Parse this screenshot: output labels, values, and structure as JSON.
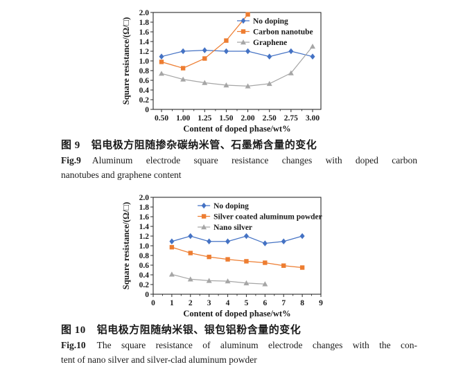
{
  "figure9": {
    "caption_zh_label": "图 9",
    "caption_zh_text": "铝电极方阻随掺杂碳纳米管、石墨烯含量的变化",
    "caption_en_label": "Fig.9",
    "caption_en_line1": "Aluminum electrode square resistance changes with doped carbon",
    "caption_en_line2": "nanotubes and graphene content"
  },
  "figure10": {
    "caption_zh_label": "图 10",
    "caption_zh_text": "铝电极方阻随纳米银、银包铝粉含量的变化",
    "caption_en_label": "Fig.10",
    "caption_en_line1": "The square resistance of aluminum electrode changes with the con-",
    "caption_en_line2": "tent of nano silver and silver-clad aluminum powder"
  },
  "colors": {
    "no_doping_blue": "#4472c4",
    "doped_orange": "#ed7d31",
    "second_doped_gray": "#a6a6a6",
    "axis": "#2a2a2a"
  },
  "chart_data": [
    {
      "id": "fig9",
      "type": "line",
      "x_mode": "categorical",
      "categories": [
        "0.50",
        "1.00",
        "1.25",
        "1.50",
        "2.00",
        "2.50",
        "2.75",
        "3.00"
      ],
      "xlabel": "Content of doped phase/wt%",
      "ylabel": "Square resistance/(Ω/□)",
      "ylim": [
        0,
        2.0
      ],
      "ytick_labels": [
        "0",
        "0.2",
        "0.4",
        "0.6",
        "0.8",
        "1.0",
        "1.2",
        "1.4",
        "1.6",
        "1.8",
        "2.0"
      ],
      "grid": false,
      "legend_position": "top-right-inside",
      "legend_x_frac": 0.5,
      "series": [
        {
          "name": "No doping",
          "color": "#4472c4",
          "marker": "diamond",
          "values": [
            1.09,
            1.2,
            1.22,
            1.2,
            1.2,
            1.09,
            1.2,
            1.09
          ]
        },
        {
          "name": "Carbon nanotube",
          "color": "#ed7d31",
          "marker": "square",
          "values": [
            0.98,
            0.85,
            1.05,
            1.42,
            1.96,
            null,
            null,
            null
          ]
        },
        {
          "name": "Graphene",
          "color": "#a6a6a6",
          "marker": "triangle",
          "values": [
            0.74,
            0.62,
            0.55,
            0.5,
            0.48,
            0.53,
            0.75,
            1.3
          ]
        }
      ]
    },
    {
      "id": "fig10",
      "type": "line",
      "x_mode": "numeric",
      "xlim": [
        0,
        9
      ],
      "xtick_labels": [
        "0",
        "1",
        "2",
        "3",
        "4",
        "5",
        "6",
        "7",
        "8",
        "9"
      ],
      "xlabel": "Content of doped phase/wt%",
      "ylabel": "Square resistance/(Ω/□)",
      "ylim": [
        0,
        2.0
      ],
      "ytick_labels": [
        "0",
        "0.2",
        "0.4",
        "0.6",
        "0.8",
        "1.0",
        "1.2",
        "1.4",
        "1.6",
        "1.8",
        "2.0"
      ],
      "grid": false,
      "legend_position": "top-right-inside",
      "legend_x_frac": 0.265,
      "series": [
        {
          "name": "No doping",
          "color": "#4472c4",
          "marker": "diamond",
          "x": [
            1,
            2,
            3,
            4,
            5,
            6,
            7,
            8
          ],
          "values": [
            1.09,
            1.2,
            1.09,
            1.09,
            1.2,
            1.05,
            1.09,
            1.2
          ]
        },
        {
          "name": "Silver coated aluminum powder",
          "color": "#ed7d31",
          "marker": "square",
          "x": [
            1,
            2,
            3,
            4,
            5,
            6,
            7,
            8
          ],
          "values": [
            0.97,
            0.85,
            0.77,
            0.72,
            0.68,
            0.65,
            0.59,
            0.55
          ]
        },
        {
          "name": "Nano silver",
          "color": "#a6a6a6",
          "marker": "triangle",
          "x": [
            1,
            2,
            3,
            4,
            5,
            6
          ],
          "values": [
            0.41,
            0.31,
            0.28,
            0.27,
            0.23,
            0.21
          ]
        }
      ]
    }
  ]
}
